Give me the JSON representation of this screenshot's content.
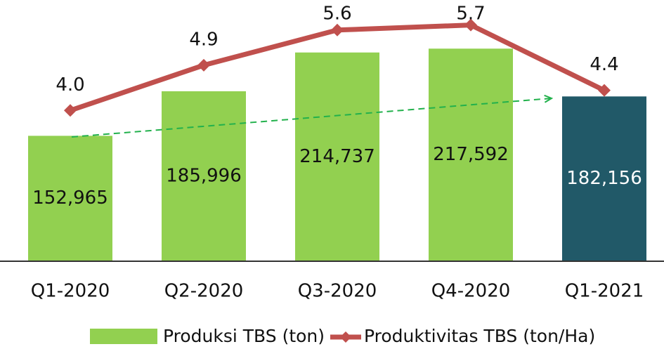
{
  "chart_data": {
    "type": "bar_line",
    "categories": [
      "Q1-2020",
      "Q2-2020",
      "Q3-2020",
      "Q4-2020",
      "Q1-2021"
    ],
    "series": [
      {
        "name": "Produksi TBS (ton)",
        "type": "bar",
        "color": "#92d050",
        "colors": [
          "#92d050",
          "#92d050",
          "#92d050",
          "#92d050",
          "#215968"
        ],
        "label_colors": [
          "#111111",
          "#111111",
          "#111111",
          "#111111",
          "#ffffff"
        ],
        "values": [
          152965,
          185996,
          214737,
          217592,
          182156
        ],
        "value_labels": [
          "152,965",
          "185,996",
          "214,737",
          "217,592",
          "182,156"
        ]
      },
      {
        "name": "Produktivitas TBS (ton/Ha)",
        "type": "line",
        "axis": "y2",
        "color": "#c0504d",
        "values": [
          4.0,
          4.9,
          5.6,
          5.7,
          4.4
        ],
        "value_labels": [
          "4.0",
          "4.9",
          "5.6",
          "5.7",
          "4.4"
        ]
      }
    ],
    "ylim": [
      60000,
      250000
    ],
    "y2lim": [
      1,
      6.1
    ]
  }
}
